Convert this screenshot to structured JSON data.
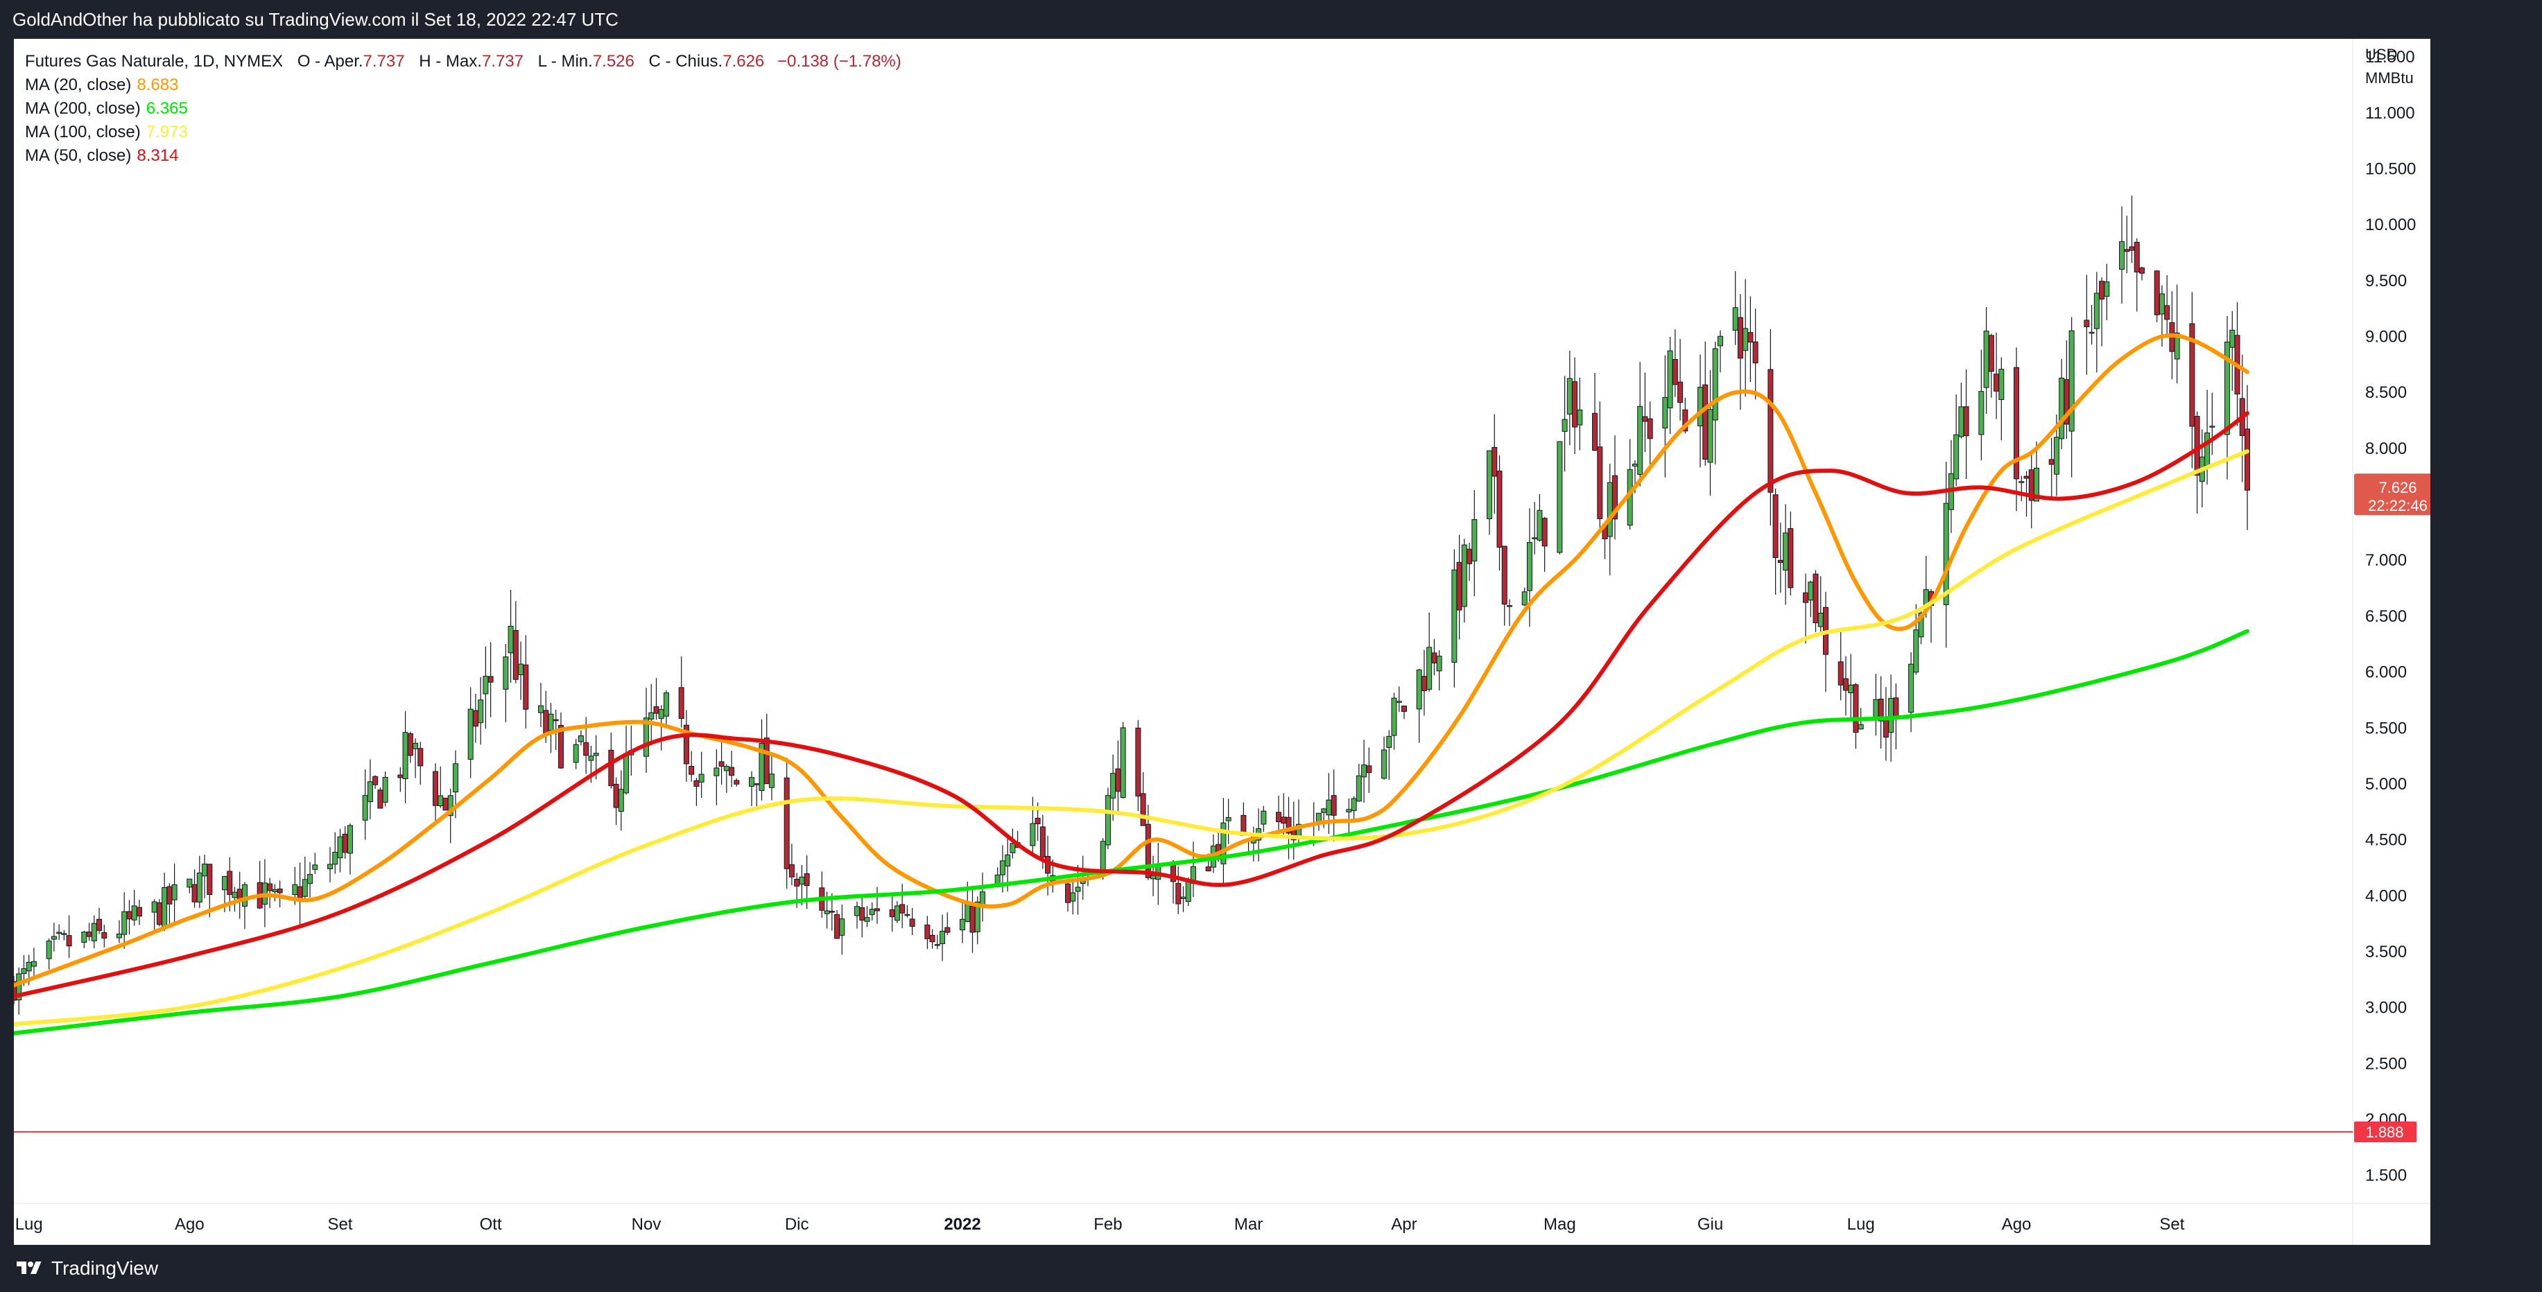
{
  "header": {
    "publish_text": "GoldAndOther ha pubblicato su TradingView.com il Set 18, 2022 22:47 UTC"
  },
  "legend": {
    "instrument": "Futures Gas Naturale, 1D, NYMEX",
    "ohlc": [
      {
        "key": "O - Aper.",
        "value": "7.737"
      },
      {
        "key": "H - Max.",
        "value": "7.737"
      },
      {
        "key": "L - Min.",
        "value": "7.526"
      },
      {
        "key": "C - Chius.",
        "value": "7.626"
      }
    ],
    "change": "−0.138 (−1.78%)",
    "change_color": "#b22833",
    "mas": [
      {
        "label": "MA (20, close)",
        "value": "8.683",
        "color": "#ff9800"
      },
      {
        "label": "MA (200, close)",
        "value": "6.365",
        "color": "#00e600"
      },
      {
        "label": "MA (100, close)",
        "value": "7.973",
        "color": "#ffeb3b"
      },
      {
        "label": "MA (50, close)",
        "value": "8.314",
        "color": "#e01010"
      }
    ]
  },
  "footer": {
    "brand": "TradingView"
  },
  "chart_data": {
    "type": "candlestick",
    "currency_label": "USD",
    "unit_label": "MMBtu",
    "ylim": [
      1.25,
      11.6
    ],
    "y_ticks": [
      "1.500",
      "2.000",
      "2.500",
      "3.000",
      "3.500",
      "4.000",
      "4.500",
      "5.000",
      "5.500",
      "6.000",
      "6.500",
      "7.000",
      "7.500",
      "8.000",
      "8.500",
      "9.000",
      "9.500",
      "10.000",
      "10.500",
      "11.000",
      "11.500"
    ],
    "x_range": [
      "2021-06-28",
      "2022-10-07"
    ],
    "x_ticks": [
      {
        "label": "Lug",
        "date": "2021-07-01",
        "bold": false
      },
      {
        "label": "Ago",
        "date": "2021-08-02",
        "bold": false
      },
      {
        "label": "Set",
        "date": "2021-09-01",
        "bold": false
      },
      {
        "label": "Ott",
        "date": "2021-10-01",
        "bold": false
      },
      {
        "label": "Nov",
        "date": "2021-11-01",
        "bold": false
      },
      {
        "label": "Dic",
        "date": "2021-12-01",
        "bold": false
      },
      {
        "label": "2022",
        "date": "2022-01-03",
        "bold": true
      },
      {
        "label": "Feb",
        "date": "2022-02-01",
        "bold": false
      },
      {
        "label": "Mar",
        "date": "2022-03-01",
        "bold": false
      },
      {
        "label": "Apr",
        "date": "2022-04-01",
        "bold": false
      },
      {
        "label": "Mag",
        "date": "2022-05-02",
        "bold": false
      },
      {
        "label": "Giu",
        "date": "2022-06-01",
        "bold": false
      },
      {
        "label": "Lug",
        "date": "2022-07-01",
        "bold": false
      },
      {
        "label": "Ago",
        "date": "2022-08-01",
        "bold": false
      },
      {
        "label": "Set",
        "date": "2022-09-01",
        "bold": false
      }
    ],
    "grid": false,
    "up_color": "#4caf50",
    "down_color": "#b22833",
    "close_anchors": [
      [
        "2021-06-28",
        3.2
      ],
      [
        "2021-07-07",
        3.55
      ],
      [
        "2021-07-16",
        3.65
      ],
      [
        "2021-07-26",
        3.85
      ],
      [
        "2021-08-05",
        4.15
      ],
      [
        "2021-08-13",
        4.1
      ],
      [
        "2021-08-20",
        3.9
      ],
      [
        "2021-08-30",
        4.3
      ],
      [
        "2021-09-08",
        4.9
      ],
      [
        "2021-09-15",
        5.3
      ],
      [
        "2021-09-22",
        4.8
      ],
      [
        "2021-09-30",
        5.85
      ],
      [
        "2021-10-05",
        6.3
      ],
      [
        "2021-10-08",
        5.65
      ],
      [
        "2021-10-14",
        5.4
      ],
      [
        "2021-10-20",
        5.2
      ],
      [
        "2021-10-25",
        4.9
      ],
      [
        "2021-11-01",
        5.45
      ],
      [
        "2021-11-05",
        5.6
      ],
      [
        "2021-11-12",
        5.1
      ],
      [
        "2021-11-19",
        5.0
      ],
      [
        "2021-11-24",
        5.2
      ],
      [
        "2021-12-01",
        4.1
      ],
      [
        "2021-12-07",
        3.75
      ],
      [
        "2021-12-15",
        3.8
      ],
      [
        "2021-12-22",
        3.9
      ],
      [
        "2021-12-30",
        3.65
      ],
      [
        "2022-01-05",
        3.8
      ],
      [
        "2022-01-12",
        4.3
      ],
      [
        "2022-01-18",
        4.55
      ],
      [
        "2022-01-24",
        4.0
      ],
      [
        "2022-01-28",
        4.2
      ],
      [
        "2022-02-04",
        5.3
      ],
      [
        "2022-02-09",
        4.3
      ],
      [
        "2022-02-16",
        4.0
      ],
      [
        "2022-02-23",
        4.5
      ],
      [
        "2022-03-03",
        4.7
      ],
      [
        "2022-03-10",
        4.6
      ],
      [
        "2022-03-18",
        4.7
      ],
      [
        "2022-03-25",
        5.3
      ],
      [
        "2022-04-01",
        5.7
      ],
      [
        "2022-04-08",
        6.3
      ],
      [
        "2022-04-14",
        7.0
      ],
      [
        "2022-04-18",
        7.75
      ],
      [
        "2022-04-22",
        6.6
      ],
      [
        "2022-04-28",
        7.2
      ],
      [
        "2022-05-05",
        8.5
      ],
      [
        "2022-05-11",
        7.5
      ],
      [
        "2022-05-17",
        8.0
      ],
      [
        "2022-05-24",
        8.6
      ],
      [
        "2022-05-31",
        8.2
      ],
      [
        "2022-06-06",
        9.3
      ],
      [
        "2022-06-10",
        8.6
      ],
      [
        "2022-06-14",
        7.2
      ],
      [
        "2022-06-20",
        6.9
      ],
      [
        "2022-06-24",
        6.3
      ],
      [
        "2022-07-01",
        5.6
      ],
      [
        "2022-07-06",
        5.5
      ],
      [
        "2022-07-12",
        6.4
      ],
      [
        "2022-07-18",
        7.3
      ],
      [
        "2022-07-22",
        8.3
      ],
      [
        "2022-07-27",
        8.8
      ],
      [
        "2022-08-02",
        7.7
      ],
      [
        "2022-08-08",
        7.9
      ],
      [
        "2022-08-12",
        8.7
      ],
      [
        "2022-08-17",
        9.2
      ],
      [
        "2022-08-22",
        9.6
      ],
      [
        "2022-08-26",
        9.3
      ],
      [
        "2022-09-01",
        9.0
      ],
      [
        "2022-09-06",
        8.0
      ],
      [
        "2022-09-09",
        8.0
      ],
      [
        "2022-09-13",
        8.9
      ],
      [
        "2022-09-16",
        7.626
      ]
    ],
    "series": [
      {
        "name": "MA (20, close)",
        "color": "#ff9800",
        "points": [
          [
            "2021-06-28",
            3.2
          ],
          [
            "2021-07-19",
            3.55
          ],
          [
            "2021-08-02",
            3.8
          ],
          [
            "2021-08-16",
            4.0
          ],
          [
            "2021-08-27",
            3.97
          ],
          [
            "2021-09-08",
            4.25
          ],
          [
            "2021-09-20",
            4.65
          ],
          [
            "2021-10-01",
            5.05
          ],
          [
            "2021-10-11",
            5.42
          ],
          [
            "2021-10-21",
            5.52
          ],
          [
            "2021-11-01",
            5.55
          ],
          [
            "2021-11-10",
            5.45
          ],
          [
            "2021-11-22",
            5.32
          ],
          [
            "2021-12-01",
            5.15
          ],
          [
            "2021-12-10",
            4.7
          ],
          [
            "2021-12-20",
            4.25
          ],
          [
            "2022-01-03",
            3.95
          ],
          [
            "2022-01-12",
            3.92
          ],
          [
            "2022-01-20",
            4.1
          ],
          [
            "2022-02-01",
            4.2
          ],
          [
            "2022-02-10",
            4.5
          ],
          [
            "2022-02-20",
            4.35
          ],
          [
            "2022-03-01",
            4.5
          ],
          [
            "2022-03-15",
            4.65
          ],
          [
            "2022-03-25",
            4.7
          ],
          [
            "2022-04-01",
            4.95
          ],
          [
            "2022-04-12",
            5.6
          ],
          [
            "2022-04-25",
            6.55
          ],
          [
            "2022-05-06",
            7.05
          ],
          [
            "2022-05-16",
            7.6
          ],
          [
            "2022-05-27",
            8.2
          ],
          [
            "2022-06-06",
            8.5
          ],
          [
            "2022-06-14",
            8.35
          ],
          [
            "2022-06-22",
            7.6
          ],
          [
            "2022-06-30",
            6.8
          ],
          [
            "2022-07-07",
            6.4
          ],
          [
            "2022-07-14",
            6.55
          ],
          [
            "2022-07-22",
            7.3
          ],
          [
            "2022-07-29",
            7.8
          ],
          [
            "2022-08-05",
            8.0
          ],
          [
            "2022-08-15",
            8.5
          ],
          [
            "2022-08-22",
            8.8
          ],
          [
            "2022-08-30",
            9.0
          ],
          [
            "2022-09-06",
            8.95
          ],
          [
            "2022-09-16",
            8.683
          ]
        ]
      },
      {
        "name": "MA (200, close)",
        "color": "#00e600",
        "points": [
          [
            "2021-06-28",
            2.77
          ],
          [
            "2021-08-01",
            2.95
          ],
          [
            "2021-09-01",
            3.1
          ],
          [
            "2021-10-01",
            3.4
          ],
          [
            "2021-11-01",
            3.72
          ],
          [
            "2021-12-01",
            3.95
          ],
          [
            "2022-01-01",
            4.05
          ],
          [
            "2022-02-01",
            4.22
          ],
          [
            "2022-03-01",
            4.38
          ],
          [
            "2022-04-01",
            4.65
          ],
          [
            "2022-05-01",
            4.95
          ],
          [
            "2022-06-01",
            5.35
          ],
          [
            "2022-06-20",
            5.55
          ],
          [
            "2022-07-10",
            5.6
          ],
          [
            "2022-08-01",
            5.75
          ],
          [
            "2022-09-01",
            6.1
          ],
          [
            "2022-09-16",
            6.365
          ]
        ]
      },
      {
        "name": "MA (100, close)",
        "color": "#ffeb3b",
        "points": [
          [
            "2021-06-28",
            2.85
          ],
          [
            "2021-08-01",
            3.0
          ],
          [
            "2021-09-01",
            3.35
          ],
          [
            "2021-10-01",
            3.85
          ],
          [
            "2021-11-01",
            4.45
          ],
          [
            "2021-12-01",
            4.85
          ],
          [
            "2022-01-01",
            4.8
          ],
          [
            "2022-02-01",
            4.75
          ],
          [
            "2022-03-01",
            4.55
          ],
          [
            "2022-04-01",
            4.55
          ],
          [
            "2022-05-01",
            4.95
          ],
          [
            "2022-06-01",
            5.8
          ],
          [
            "2022-06-20",
            6.3
          ],
          [
            "2022-07-10",
            6.5
          ],
          [
            "2022-08-01",
            7.1
          ],
          [
            "2022-09-01",
            7.7
          ],
          [
            "2022-09-16",
            7.973
          ]
        ]
      },
      {
        "name": "MA (50, close)",
        "color": "#e01010",
        "points": [
          [
            "2021-06-28",
            3.1
          ],
          [
            "2021-08-01",
            3.45
          ],
          [
            "2021-09-01",
            3.85
          ],
          [
            "2021-10-01",
            4.5
          ],
          [
            "2021-11-01",
            5.35
          ],
          [
            "2021-11-20",
            5.4
          ],
          [
            "2021-12-10",
            5.25
          ],
          [
            "2022-01-01",
            4.9
          ],
          [
            "2022-01-20",
            4.3
          ],
          [
            "2022-02-10",
            4.2
          ],
          [
            "2022-02-25",
            4.1
          ],
          [
            "2022-03-15",
            4.35
          ],
          [
            "2022-04-01",
            4.6
          ],
          [
            "2022-05-01",
            5.5
          ],
          [
            "2022-05-20",
            6.6
          ],
          [
            "2022-06-10",
            7.6
          ],
          [
            "2022-06-25",
            7.8
          ],
          [
            "2022-07-10",
            7.6
          ],
          [
            "2022-07-25",
            7.65
          ],
          [
            "2022-08-10",
            7.55
          ],
          [
            "2022-08-25",
            7.7
          ],
          [
            "2022-09-08",
            8.05
          ],
          [
            "2022-09-16",
            8.314
          ]
        ]
      }
    ],
    "reference_line": {
      "value": 1.888,
      "label": "1.888",
      "color": "#f23645"
    },
    "last_price": {
      "value": 7.626,
      "label": "7.626",
      "countdown": "22:22:46",
      "color": "#e0594d"
    }
  }
}
